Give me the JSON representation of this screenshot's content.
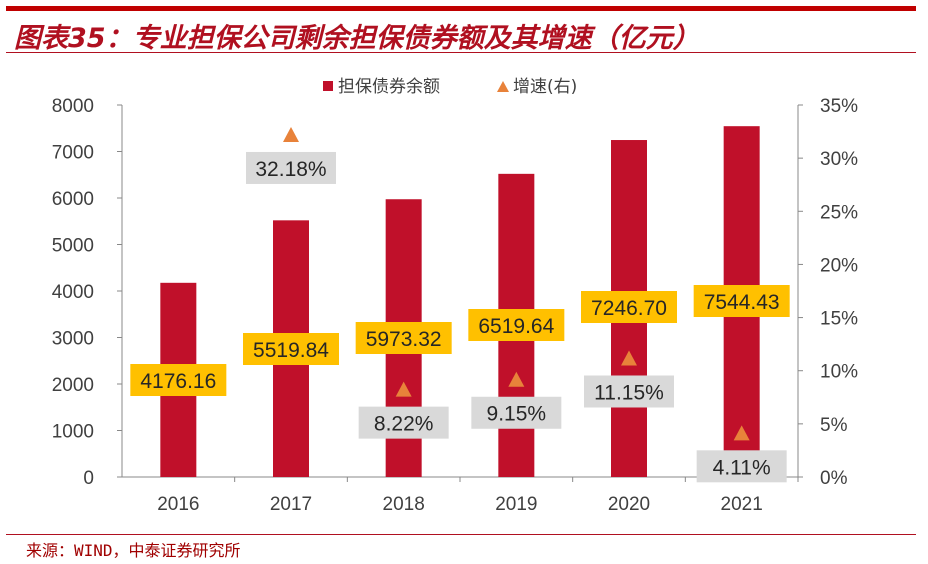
{
  "title": "图表35：专业担保公司剩余担保债券额及其增速（亿元）",
  "source": "来源：WIND，中泰证券研究所",
  "chart_data": {
    "type": "bar",
    "categories": [
      "2016",
      "2017",
      "2018",
      "2019",
      "2020",
      "2021"
    ],
    "series": [
      {
        "name": "担保债券余额",
        "type": "bar",
        "axis": "left",
        "color": "#c0102a",
        "values": [
          4176.16,
          5519.84,
          5973.32,
          6519.64,
          7246.7,
          7544.43
        ],
        "labels": [
          "4176.16",
          "5519.84",
          "5973.32",
          "6519.64",
          "7246.70",
          "7544.43"
        ]
      },
      {
        "name": "增速(右)",
        "type": "scatter",
        "marker": "triangle",
        "axis": "right",
        "color": "#e8823a",
        "values": [
          null,
          32.18,
          8.22,
          9.15,
          11.15,
          4.11
        ],
        "labels": [
          "",
          "32.18%",
          "8.22%",
          "9.15%",
          "11.15%",
          "4.11%"
        ]
      }
    ],
    "ylim": [
      0,
      8000
    ],
    "yticks": [
      "0",
      "1000",
      "2000",
      "3000",
      "4000",
      "5000",
      "6000",
      "7000",
      "8000"
    ],
    "y2lim": [
      0,
      35
    ],
    "y2ticks": [
      "0%",
      "5%",
      "10%",
      "15%",
      "20%",
      "25%",
      "30%",
      "35%"
    ],
    "legend": "top",
    "grid": false,
    "label_colors": {
      "bar_label_bg": "#ffc000",
      "growth_label_bg": "#d9d9d9"
    }
  }
}
